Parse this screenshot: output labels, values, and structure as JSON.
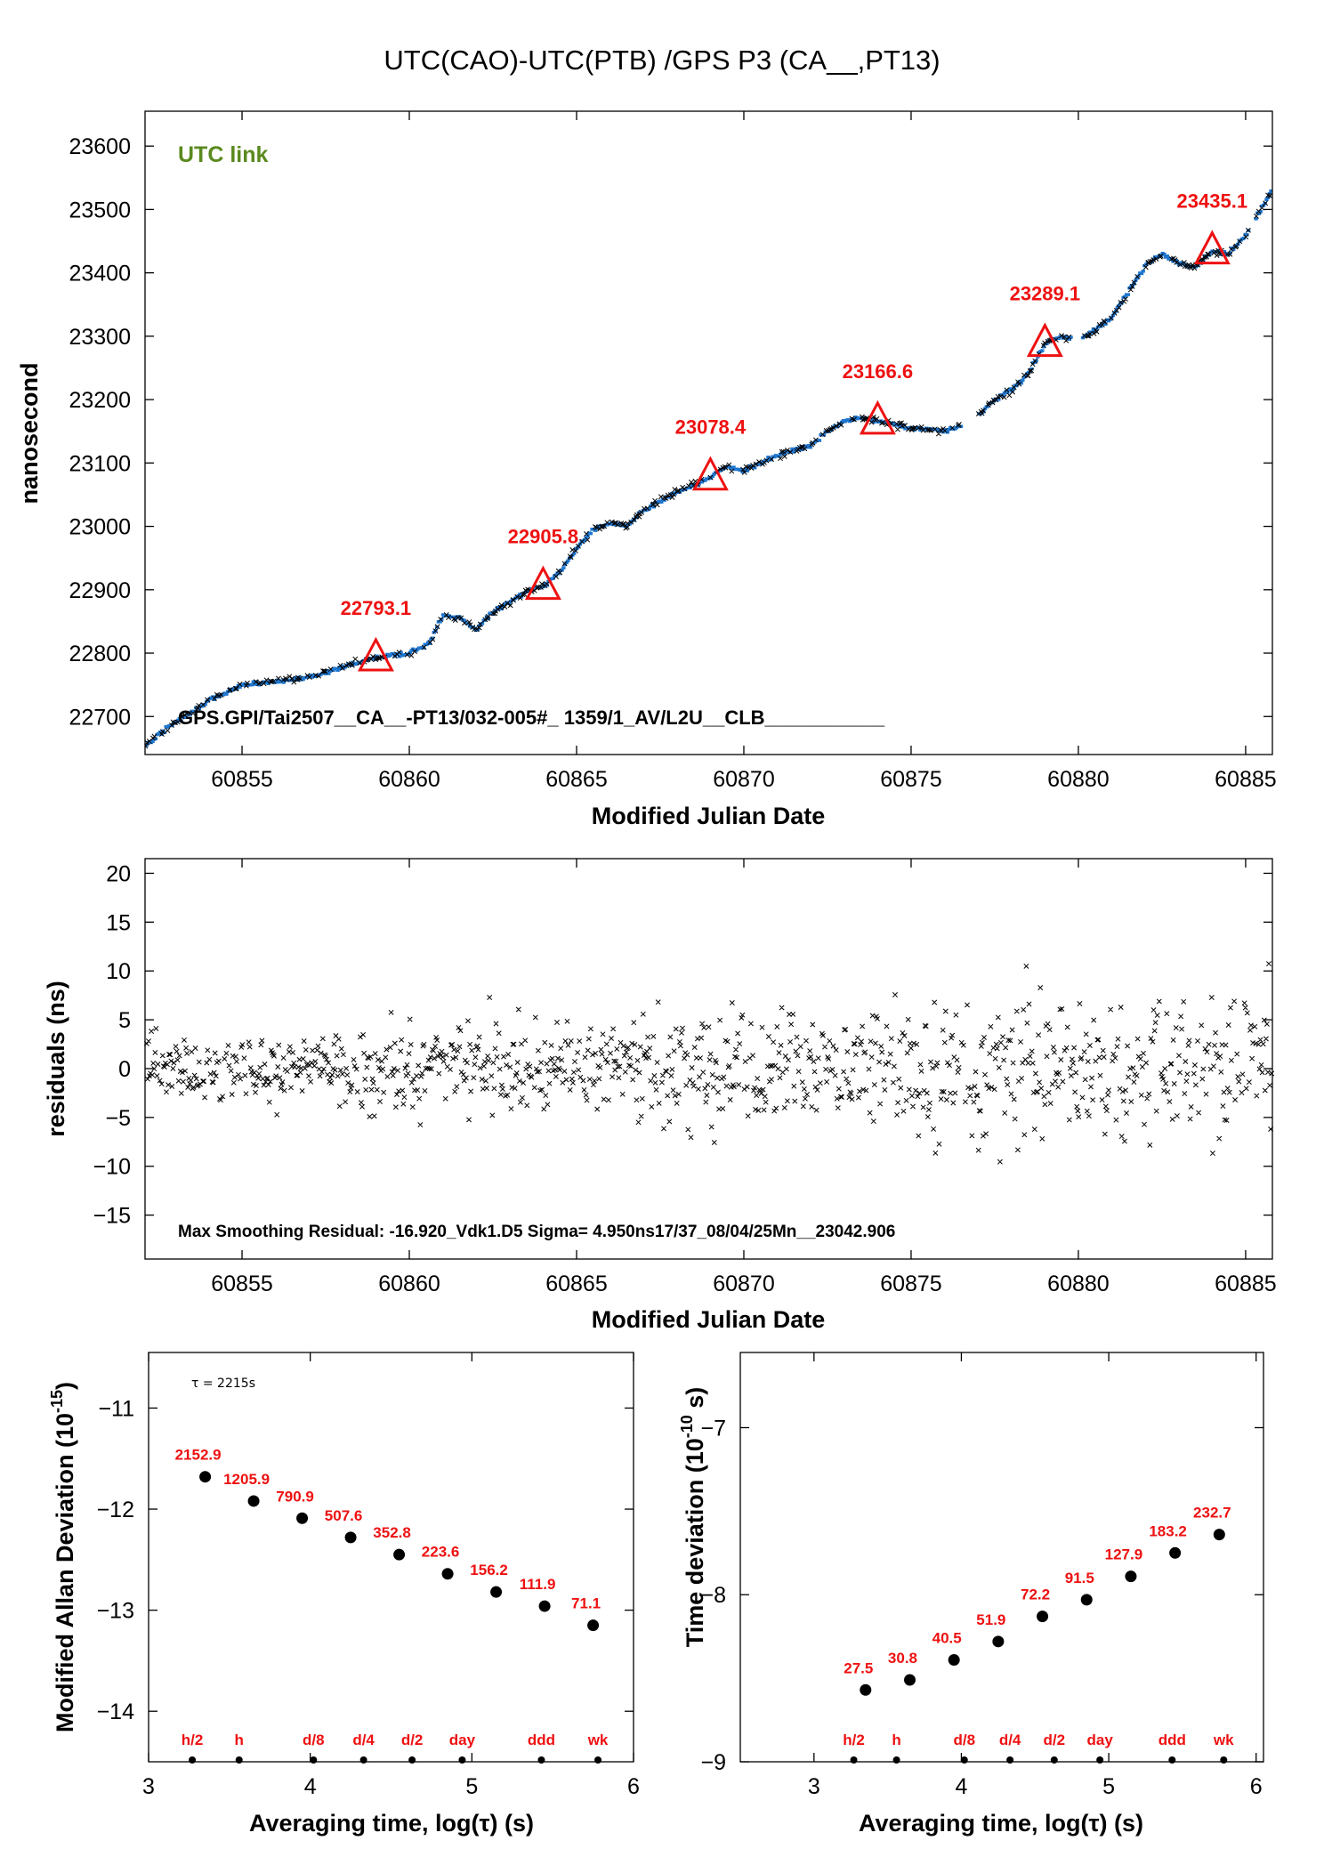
{
  "title": "UTC(CAO)-UTC(PTB)  /GPS  P3  (CA__,PT13)",
  "colors": {
    "series": "#1f77d0",
    "markers": "#000000",
    "annotation": "#ee1111",
    "link_label": "#5a8a1e"
  },
  "chart_data": [
    {
      "id": "top",
      "type": "scatter",
      "link_label": "UTC link",
      "footer_text": "GPS.GPI/Tai2507__CA__-PT13/032-005#_  1359/1_AV/L2U__CLB___________",
      "xlabel": "Modified Julian Date",
      "ylabel": "nanosecond",
      "xlim": [
        60852.1,
        60885.8
      ],
      "ylim": [
        22640,
        23655
      ],
      "xticks": [
        60855,
        60860,
        60865,
        60870,
        60875,
        60880,
        60885
      ],
      "yticks": [
        22700,
        22800,
        22900,
        23000,
        23100,
        23200,
        23300,
        23400,
        23500,
        23600
      ],
      "trend": {
        "x": [
          60852.1,
          60853,
          60854,
          60855,
          60856,
          60857,
          60858,
          60859,
          60860,
          60860.6,
          60861,
          60861.5,
          60862,
          60862.5,
          60863,
          60863.5,
          60864,
          60864.5,
          60865,
          60865.5,
          60866,
          60866.5,
          60867,
          60867.5,
          60868,
          60868.5,
          60869,
          60869.5,
          60870,
          60870.5,
          60871,
          60871.5,
          60872,
          60872.5,
          60873,
          60873.5,
          60874,
          60874.5,
          60875,
          60875.5,
          60876,
          60876.5,
          60877,
          60877.5,
          60878,
          60878.5,
          60879,
          60879.5,
          60880,
          60880.5,
          60881,
          60881.5,
          60882,
          60882.5,
          60883,
          60883.5,
          60884,
          60884.5,
          60885,
          60885.4,
          60885.8
        ],
        "y": [
          22655,
          22690,
          22725,
          22750,
          22755,
          22762,
          22778,
          22793,
          22800,
          22815,
          22860,
          22855,
          22838,
          22865,
          22880,
          22898,
          22905,
          22928,
          22965,
          22995,
          23005,
          23000,
          23025,
          23040,
          23055,
          23065,
          23078,
          23095,
          23088,
          23100,
          23112,
          23120,
          23128,
          23150,
          23165,
          23172,
          23166,
          23160,
          23155,
          23153,
          23150,
          23158,
          23175,
          23200,
          23215,
          23240,
          23289,
          23300,
          23295,
          23310,
          23330,
          23370,
          23410,
          23430,
          23415,
          23410,
          23435,
          23430,
          23460,
          23495,
          23530
        ]
      },
      "markers": [
        {
          "x": 60859,
          "y": 22793.1,
          "label": "22793.1"
        },
        {
          "x": 60864,
          "y": 22905.8,
          "label": "22905.8"
        },
        {
          "x": 60869,
          "y": 23078.4,
          "label": "23078.4"
        },
        {
          "x": 60874,
          "y": 23166.6,
          "label": "23166.6"
        },
        {
          "x": 60879,
          "y": 23289.1,
          "label": "23289.1"
        },
        {
          "x": 60884,
          "y": 23435.1,
          "label": "23435.1"
        }
      ]
    },
    {
      "id": "residuals",
      "type": "scatter",
      "xlabel": "Modified Julian Date",
      "ylabel": "residuals (ns)",
      "xlim": [
        60852.1,
        60885.8
      ],
      "ylim": [
        -19.5,
        21.5
      ],
      "xticks": [
        60855,
        60860,
        60865,
        60870,
        60875,
        60880,
        60885
      ],
      "yticks": [
        -15,
        -10,
        -5,
        0,
        5,
        10,
        15,
        20
      ],
      "info_text": "Max Smoothing Residual: -16.920_Vdk1.D5  Sigma= 4.950ns17/37_08/04/25Mn__23042.906",
      "sigma_ns": 4.95,
      "max_residual_ns": -16.92
    },
    {
      "id": "mdev",
      "type": "scatter",
      "xlabel": "Averaging time, log(τ) (s)",
      "ylabel": "Modified Allan Deviation (10",
      "ylabel_sup": "-15",
      "ylabel_end": ")",
      "tau_note": "τ = 2215s",
      "xlim": [
        3,
        6
      ],
      "ylim": [
        -14.5,
        -10.45
      ],
      "xticks": [
        3,
        4,
        5,
        6
      ],
      "yticks": [
        -14,
        -13,
        -12,
        -11
      ],
      "x": [
        3.35,
        3.65,
        3.95,
        4.25,
        4.55,
        4.85,
        5.15,
        5.45,
        5.75
      ],
      "y": [
        -11.68,
        -11.92,
        -12.09,
        -12.28,
        -12.45,
        -12.64,
        -12.82,
        -12.96,
        -13.15
      ],
      "point_labels": [
        "2152.9",
        "1205.9",
        "790.9",
        "507.6",
        "352.8",
        "223.6",
        "156.2",
        "111.9",
        "71.1"
      ],
      "marks": [
        {
          "x": 3.27,
          "label": "h/2"
        },
        {
          "x": 3.56,
          "label": "h"
        },
        {
          "x": 4.02,
          "label": "d/8"
        },
        {
          "x": 4.33,
          "label": "d/4"
        },
        {
          "x": 4.63,
          "label": "d/2"
        },
        {
          "x": 4.94,
          "label": "day"
        },
        {
          "x": 5.43,
          "label": "ddd"
        },
        {
          "x": 5.78,
          "label": "wk"
        }
      ]
    },
    {
      "id": "tdev",
      "type": "scatter",
      "xlabel": "Averaging time, log(τ) (s)",
      "ylabel": "Time deviation (10",
      "ylabel_sup": "-10",
      "ylabel_end": " s)",
      "xlim": [
        2.5,
        6.05
      ],
      "ylim": [
        -9,
        -6.55
      ],
      "xticks": [
        3,
        4,
        5,
        6
      ],
      "yticks": [
        -9,
        -8,
        -7
      ],
      "x": [
        3.35,
        3.65,
        3.95,
        4.25,
        4.55,
        4.85,
        5.15,
        5.45,
        5.75
      ],
      "y": [
        -8.57,
        -8.51,
        -8.39,
        -8.28,
        -8.13,
        -8.03,
        -7.89,
        -7.75,
        -7.64
      ],
      "point_labels": [
        "27.5",
        "30.8",
        "40.5",
        "51.9",
        "72.2",
        "91.5",
        "127.9",
        "183.2",
        "232.7"
      ],
      "marks": [
        {
          "x": 3.27,
          "label": "h/2"
        },
        {
          "x": 3.56,
          "label": "h"
        },
        {
          "x": 4.02,
          "label": "d/8"
        },
        {
          "x": 4.33,
          "label": "d/4"
        },
        {
          "x": 4.63,
          "label": "d/2"
        },
        {
          "x": 4.94,
          "label": "day"
        },
        {
          "x": 5.43,
          "label": "ddd"
        },
        {
          "x": 5.78,
          "label": "wk"
        }
      ]
    }
  ]
}
